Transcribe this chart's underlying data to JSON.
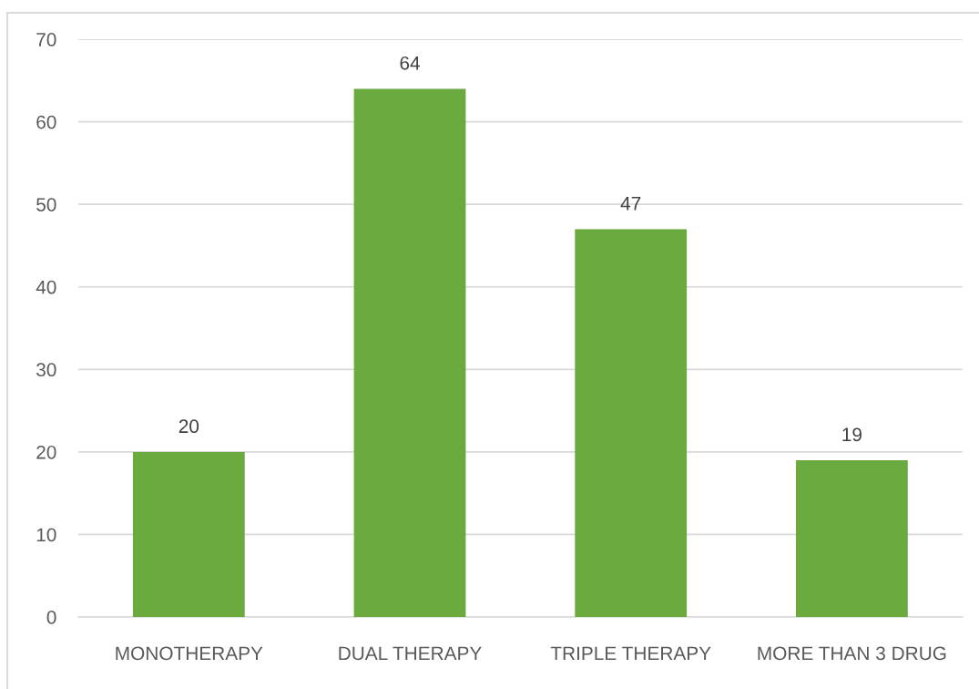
{
  "chart_data": {
    "type": "bar",
    "categories": [
      "MONOTHERAPY",
      "DUAL THERAPY",
      "TRIPLE THERAPY",
      "MORE THAN 3 DRUG"
    ],
    "values": [
      20,
      64,
      47,
      19
    ],
    "color": "#6aaa3e",
    "ylim": [
      0,
      70
    ],
    "yticks": [
      0,
      10,
      20,
      30,
      40,
      50,
      60,
      70
    ],
    "grid": "y",
    "data_labels": true
  }
}
